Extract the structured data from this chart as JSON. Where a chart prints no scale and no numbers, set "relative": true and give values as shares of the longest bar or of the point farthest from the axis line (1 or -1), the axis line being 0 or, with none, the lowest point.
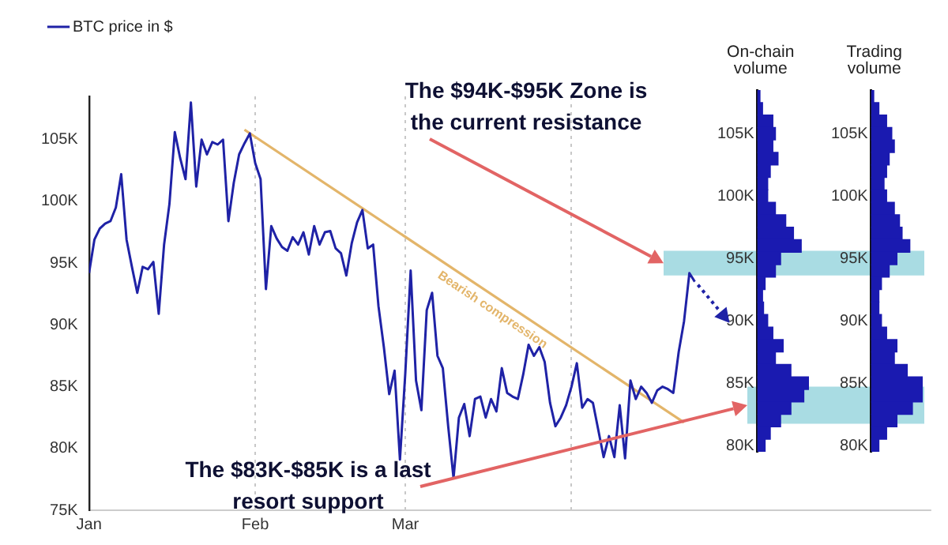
{
  "chart_data": [
    {
      "type": "line",
      "x": [
        "--01-01",
        "--01-02",
        "--01-03",
        "--01-04",
        "--01-05",
        "--01-06",
        "--01-07",
        "--01-08",
        "--01-09",
        "--01-10",
        "--01-11",
        "--01-12",
        "--01-13",
        "--01-14",
        "--01-15",
        "--01-16",
        "--01-17",
        "--01-18",
        "--01-19",
        "--01-20",
        "--01-21",
        "--01-22",
        "--01-23",
        "--01-24",
        "--01-25",
        "--01-26",
        "--01-27",
        "--01-28",
        "--01-29",
        "--01-30",
        "--01-31",
        "--02-01",
        "--02-02",
        "--02-03",
        "--02-04",
        "--02-05",
        "--02-06",
        "--02-07",
        "--02-08",
        "--02-09",
        "--02-10",
        "--02-11",
        "--02-12",
        "--02-13",
        "--02-14",
        "--02-15",
        "--02-16",
        "--02-17",
        "--02-18",
        "--02-19",
        "--02-20",
        "--02-21",
        "--02-22",
        "--02-23",
        "--02-24",
        "--02-25",
        "--02-26",
        "--02-27",
        "--02-28",
        "--03-01",
        "--03-02",
        "--03-03",
        "--03-04",
        "--03-05",
        "--03-06",
        "--03-07",
        "--03-08",
        "--03-09",
        "--03-10",
        "--03-11",
        "--03-12",
        "--03-13",
        "--03-14",
        "--03-15",
        "--03-16",
        "--03-17",
        "--03-18",
        "--03-19",
        "--03-20",
        "--03-21",
        "--03-22",
        "--03-23",
        "--03-24",
        "--03-25",
        "--03-26",
        "--03-27",
        "--03-28",
        "--03-29",
        "--03-30",
        "--03-31",
        "--04-01",
        "--04-02",
        "--04-03",
        "--04-04",
        "--04-05",
        "--04-06",
        "--04-07",
        "--04-08",
        "--04-09",
        "--04-10",
        "--04-11",
        "--04-12",
        "--04-13",
        "--04-14",
        "--04-15",
        "--04-16",
        "--04-17",
        "--04-18",
        "--04-19",
        "--04-20",
        "--04-21",
        "--04-22",
        "--04-23",
        "--04-24"
      ],
      "series": [
        {
          "name": "BTC price in $",
          "color": "#1f22a6",
          "values": [
            94200,
            96900,
            97800,
            98200,
            98400,
            99500,
            102200,
            96900,
            94700,
            92600,
            94700,
            94500,
            95100,
            90900,
            96500,
            99800,
            105600,
            103500,
            101800,
            108000,
            101200,
            105000,
            103800,
            104800,
            104600,
            105000,
            98400,
            101500,
            103800,
            104700,
            105500,
            103100,
            101800,
            92900,
            98000,
            97000,
            96300,
            96000,
            97100,
            96500,
            97500,
            95700,
            98000,
            96500,
            97500,
            97600,
            96200,
            95800,
            94000,
            96600,
            98300,
            99300,
            96200,
            96500,
            91500,
            88200,
            84400,
            86300,
            79100,
            86100,
            94400,
            85500,
            83100,
            91200,
            92600,
            87500,
            86500,
            81800,
            77600,
            82500,
            83600,
            81000,
            84000,
            84200,
            82500,
            84000,
            83000,
            86500,
            84500,
            84200,
            84000,
            86000,
            88400,
            87500,
            88200,
            87000,
            83700,
            81800,
            82500,
            83500,
            85000,
            86900,
            83300,
            84000,
            83700,
            81500,
            79300,
            81000,
            79300,
            83500,
            79200,
            85500,
            84000,
            85000,
            84500,
            83700,
            84700,
            85000,
            84800,
            84500,
            87800,
            90300,
            94200,
            93500
          ]
        },
        {
          "name": "Bearish compression",
          "type": "line",
          "color": "#e3b56a",
          "x": [
            "--01-30",
            "--04-22"
          ],
          "values": [
            105800,
            82100
          ]
        }
      ],
      "xlim": [
        "--01-01",
        "--06-07"
      ],
      "xticks": [
        {
          "value": "--01-01",
          "label": "Jan"
        },
        {
          "value": "--02-01",
          "label": "Feb"
        },
        {
          "value": "--03-01",
          "label": "Mar"
        },
        {
          "value": "--04-01",
          "label": null
        }
      ],
      "ylim": [
        75000,
        108500
      ],
      "yticks": [
        {
          "value": 75000,
          "label": "75K"
        },
        {
          "value": 80000,
          "label": "80K"
        },
        {
          "value": 85000,
          "label": "85K"
        },
        {
          "value": 90000,
          "label": "90K"
        },
        {
          "value": 95000,
          "label": "95K"
        },
        {
          "value": 100000,
          "label": "100K"
        },
        {
          "value": 105000,
          "label": "105K"
        }
      ],
      "grid": "x",
      "legend": "top left",
      "marker": "none",
      "bands": [
        {
          "axis": "y",
          "from": 94000,
          "to": 96000,
          "color": "#a9dce3"
        },
        {
          "axis": "y",
          "from": 82000,
          "to": 85000,
          "color": "#a9dce3"
        }
      ],
      "annotations": [
        "The $94K-$95K Zone is the current resistance",
        "The $83K-$85K is a last resort support"
      ]
    },
    {
      "type": "bar",
      "orientation": "horizontal",
      "relative": true,
      "title": "On-chain volume",
      "color": "#1a1ab0",
      "categories": [
        null,
        null,
        null,
        "105K",
        null,
        null,
        null,
        null,
        "100K",
        null,
        null,
        null,
        null,
        "95K",
        null,
        null,
        null,
        null,
        "90K",
        null,
        null,
        null,
        null,
        "85K",
        null,
        null,
        null,
        null,
        "80K"
      ],
      "values": [
        0.05,
        0.1,
        0.3,
        0.35,
        0.3,
        0.4,
        0.25,
        0.2,
        0.2,
        0.35,
        0.55,
        0.7,
        0.85,
        0.45,
        0.35,
        0.15,
        0.1,
        0.12,
        0.2,
        0.3,
        0.5,
        0.35,
        0.65,
        1,
        0.9,
        0.65,
        0.45,
        0.25,
        0.15
      ]
    },
    {
      "type": "bar",
      "orientation": "horizontal",
      "relative": true,
      "title": "Trading volume",
      "color": "#1a1ab0",
      "categories": [
        null,
        null,
        null,
        "105K",
        null,
        null,
        null,
        null,
        "100K",
        null,
        null,
        null,
        null,
        "95K",
        null,
        null,
        null,
        null,
        "90K",
        null,
        null,
        null,
        null,
        "85K",
        null,
        null,
        null,
        null,
        "80K"
      ],
      "values": [
        0.05,
        0.15,
        0.3,
        0.4,
        0.45,
        0.35,
        0.3,
        0.25,
        0.3,
        0.45,
        0.55,
        0.6,
        0.75,
        0.5,
        0.35,
        0.2,
        0.15,
        0.15,
        0.2,
        0.3,
        0.5,
        0.45,
        0.7,
        1,
        1,
        0.8,
        0.5,
        0.3,
        0.15
      ]
    }
  ]
}
